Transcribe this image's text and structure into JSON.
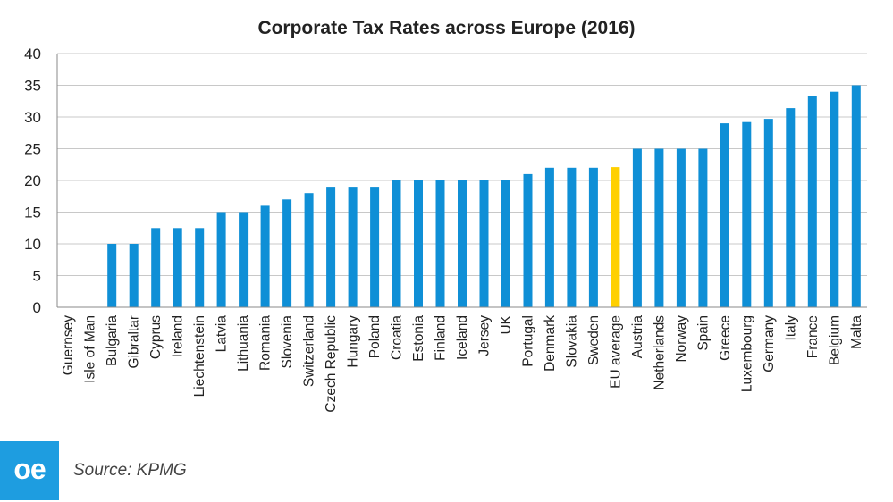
{
  "logo": {
    "text": "oe",
    "color": "#1e9de0"
  },
  "source": "Source: KPMG",
  "chart_data": {
    "type": "bar",
    "title": "Corporate Tax Rates across Europe (2016)",
    "xlabel": "",
    "ylabel": "",
    "ylim": [
      0,
      40
    ],
    "yticks": [
      "0",
      "5",
      "10",
      "15",
      "20",
      "25",
      "30",
      "35",
      "40"
    ],
    "grid": true,
    "legend": "none",
    "bar_color": "#0f8fd6",
    "highlight_color": "#ffd000",
    "highlight_category": "EU average",
    "categories": [
      "Guernsey",
      "Isle of Man",
      "Bulgaria",
      "Gibraltar",
      "Cyprus",
      "Ireland",
      "Liechtenstein",
      "Latvia",
      "Lithuania",
      "Romania",
      "Slovenia",
      "Switzerland",
      "Czech Republic",
      "Hungary",
      "Poland",
      "Croatia",
      "Estonia",
      "Finland",
      "Iceland",
      "Jersey",
      "UK",
      "Portugal",
      "Denmark",
      "Slovakia",
      "Sweden",
      "EU average",
      "Austria",
      "Netherlands",
      "Norway",
      "Spain",
      "Greece",
      "Luxembourg",
      "Germany",
      "Italy",
      "France",
      "Belgium",
      "Malta"
    ],
    "values": [
      0,
      0,
      10,
      10,
      12.5,
      12.5,
      12.5,
      15,
      15,
      16,
      17,
      18,
      19,
      19,
      19,
      20,
      20,
      20,
      20,
      20,
      20,
      21,
      22,
      22,
      22,
      22.1,
      25,
      25,
      25,
      25,
      29,
      29.2,
      29.7,
      31.4,
      33.3,
      33.99,
      35
    ]
  }
}
